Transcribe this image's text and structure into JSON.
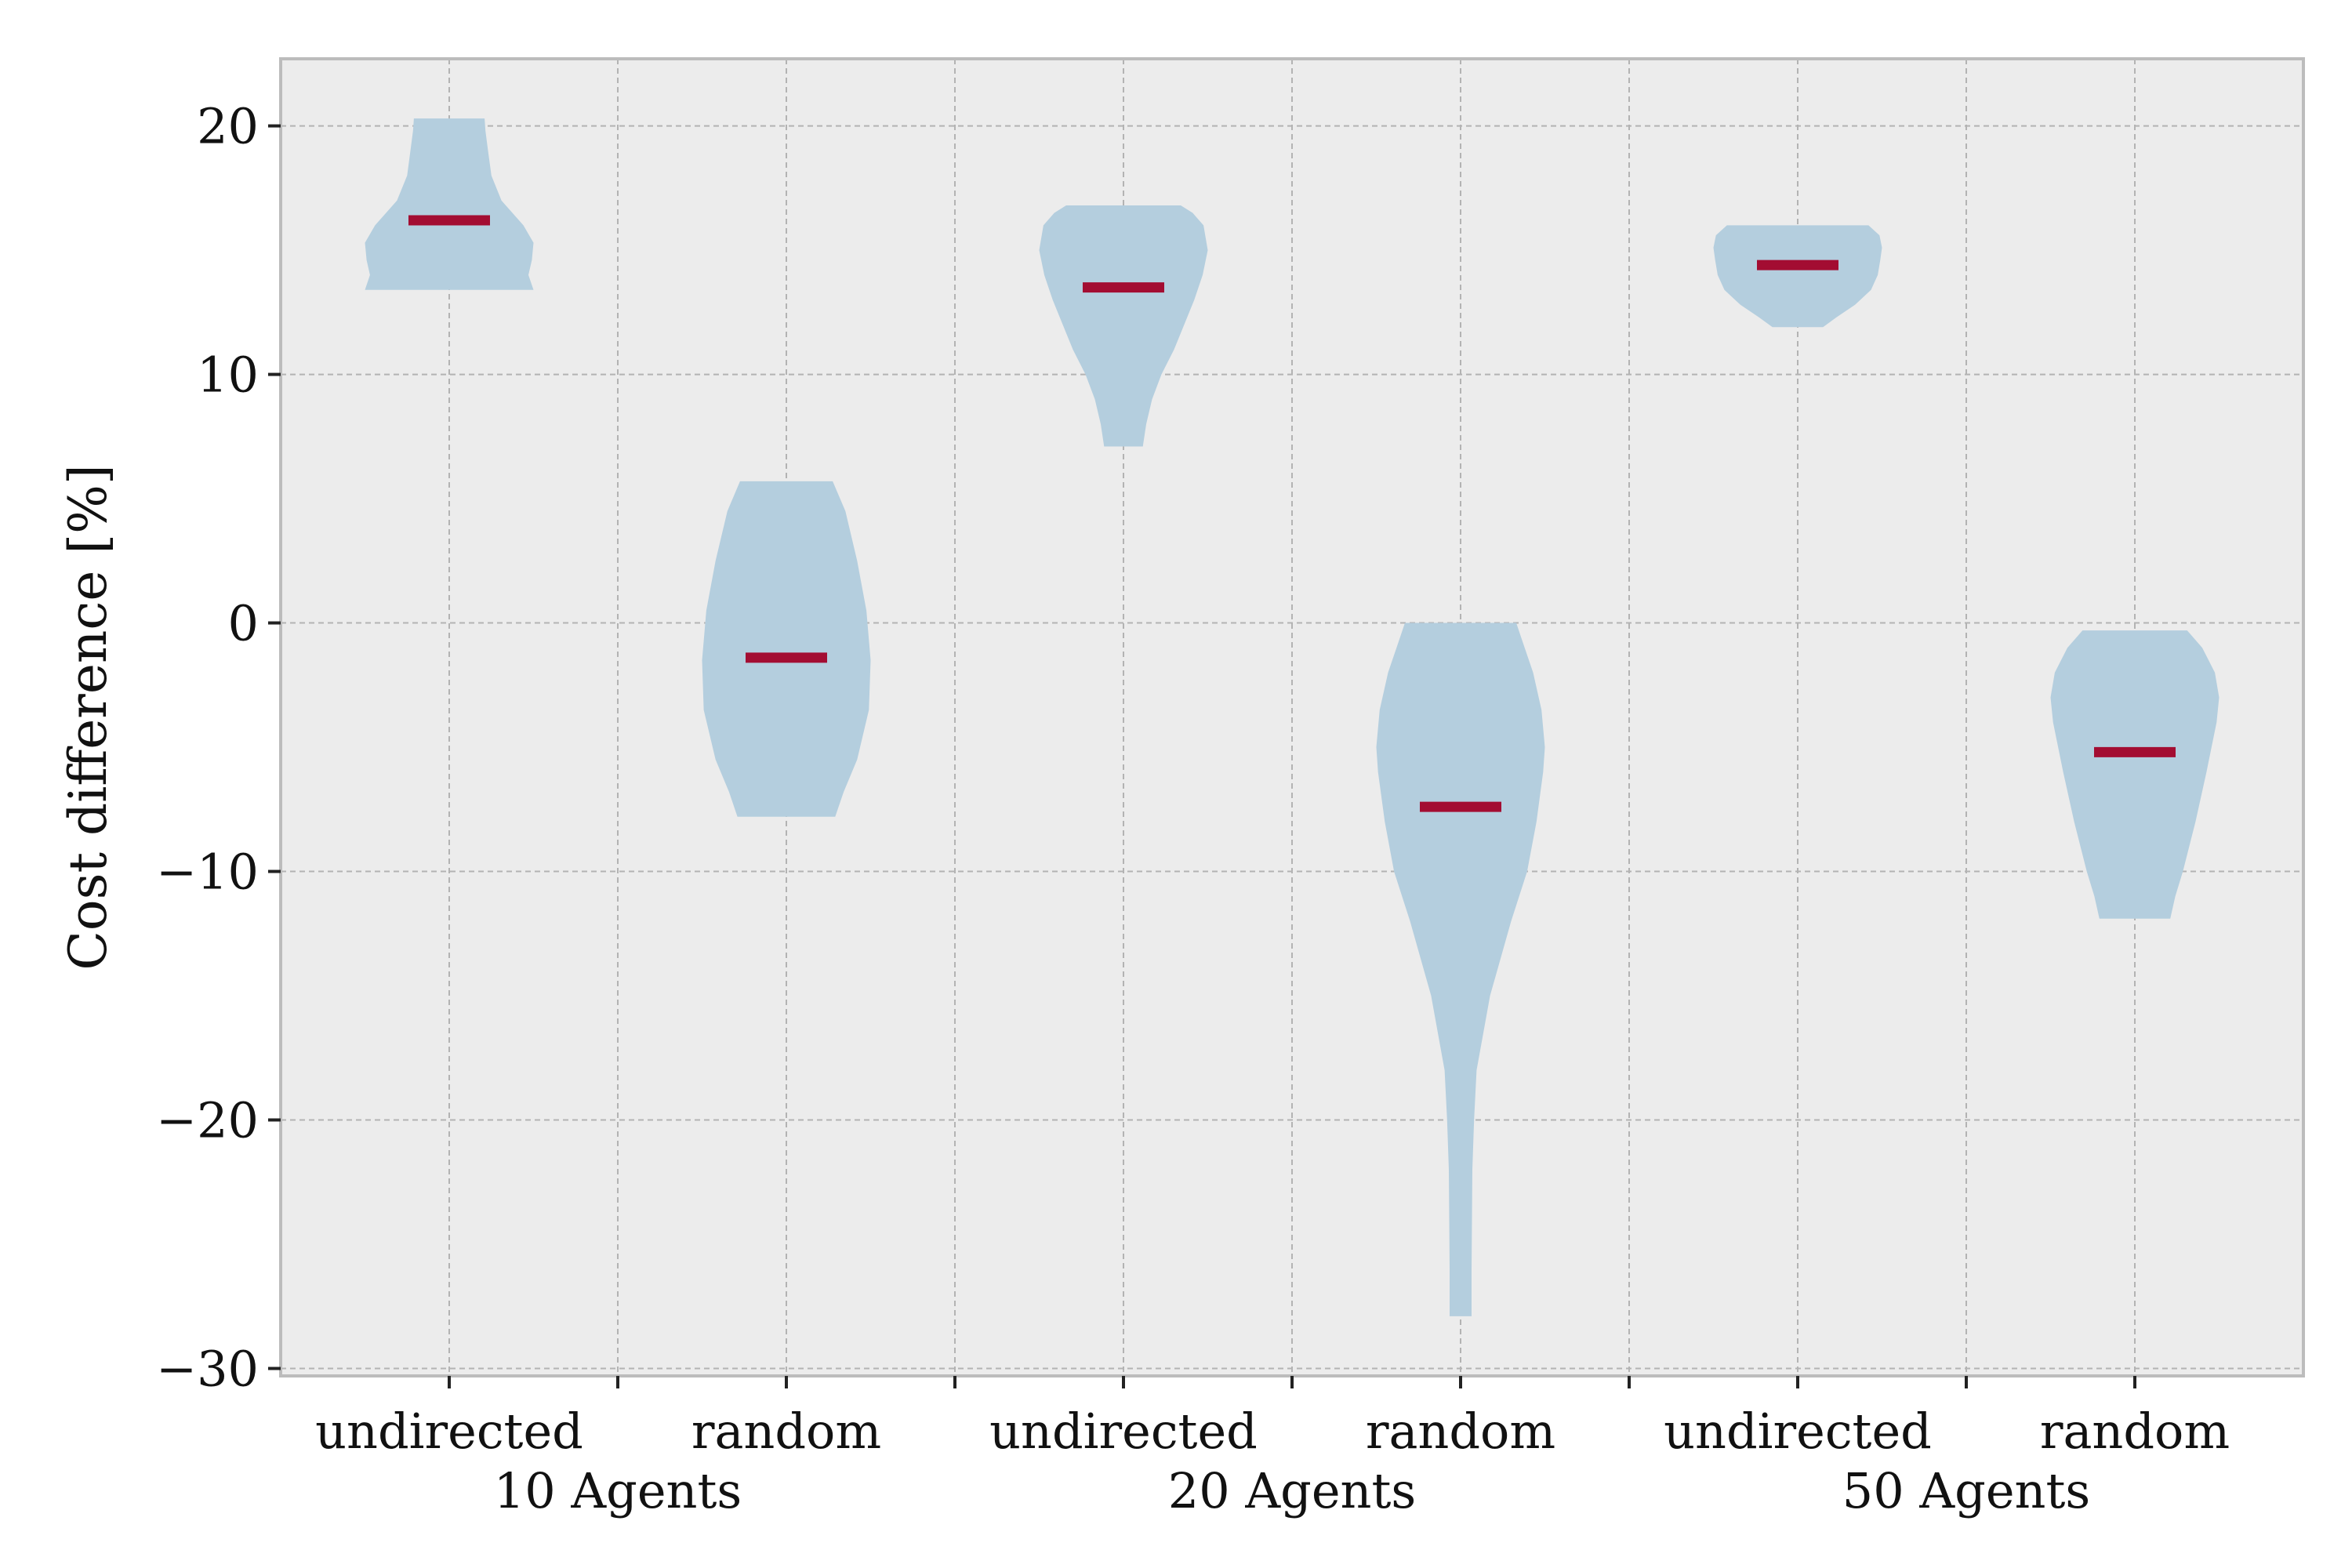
{
  "chart_data": {
    "type": "violin",
    "ylabel": "Cost difference [%]",
    "xlabel": "",
    "ylim": [
      -30.3,
      22.7
    ],
    "yticks": [
      -30,
      -20,
      -10,
      0,
      10,
      20
    ],
    "grid": true,
    "colors": {
      "background": "#ececec",
      "violin": "#b4cede",
      "median": "#a30d32",
      "grid": "#b3b3b3",
      "frame": "#bcbcbc"
    },
    "groups": [
      {
        "label": "10 Agents",
        "categories": [
          "undirected",
          "random"
        ]
      },
      {
        "label": "20 Agents",
        "categories": [
          "undirected",
          "random"
        ]
      },
      {
        "label": "50 Agents",
        "categories": [
          "undirected",
          "random"
        ]
      }
    ],
    "series": [
      {
        "category": "undirected",
        "group": "10 Agents",
        "min": 13.4,
        "max": 20.3,
        "median": 16.2,
        "profile": [
          [
            13.4,
            1.0
          ],
          [
            14.0,
            0.94
          ],
          [
            14.6,
            0.98
          ],
          [
            15.3,
            1.0
          ],
          [
            16.0,
            0.88
          ],
          [
            17.0,
            0.62
          ],
          [
            18.0,
            0.5
          ],
          [
            19.0,
            0.46
          ],
          [
            19.8,
            0.43
          ],
          [
            20.3,
            0.42
          ]
        ]
      },
      {
        "category": "random",
        "group": "10 Agents",
        "min": -7.8,
        "max": 5.7,
        "median": -1.4,
        "profile": [
          [
            -7.8,
            0.58
          ],
          [
            -6.8,
            0.68
          ],
          [
            -5.5,
            0.84
          ],
          [
            -3.5,
            0.98
          ],
          [
            -1.5,
            1.0
          ],
          [
            0.5,
            0.95
          ],
          [
            2.5,
            0.84
          ],
          [
            4.5,
            0.7
          ],
          [
            5.7,
            0.55
          ]
        ]
      },
      {
        "category": "undirected",
        "group": "20 Agents",
        "min": 7.1,
        "max": 16.8,
        "median": 13.5,
        "profile": [
          [
            7.1,
            0.23
          ],
          [
            8.0,
            0.27
          ],
          [
            9.0,
            0.34
          ],
          [
            10.0,
            0.45
          ],
          [
            11.0,
            0.6
          ],
          [
            12.0,
            0.72
          ],
          [
            13.0,
            0.84
          ],
          [
            14.0,
            0.94
          ],
          [
            15.0,
            1.0
          ],
          [
            16.0,
            0.95
          ],
          [
            16.5,
            0.82
          ],
          [
            16.8,
            0.68
          ]
        ]
      },
      {
        "category": "random",
        "group": "20 Agents",
        "min": -27.9,
        "max": 0.0,
        "median": -7.4,
        "profile": [
          [
            -27.9,
            0.13
          ],
          [
            -26.0,
            0.13
          ],
          [
            -22.0,
            0.14
          ],
          [
            -20.0,
            0.16
          ],
          [
            -18.0,
            0.19
          ],
          [
            -15.0,
            0.35
          ],
          [
            -12.0,
            0.6
          ],
          [
            -10.0,
            0.79
          ],
          [
            -8.0,
            0.9
          ],
          [
            -6.0,
            0.98
          ],
          [
            -5.0,
            1.0
          ],
          [
            -3.5,
            0.96
          ],
          [
            -2.0,
            0.86
          ],
          [
            -0.7,
            0.73
          ],
          [
            0.0,
            0.66
          ]
        ]
      },
      {
        "category": "undirected",
        "group": "50 Agents",
        "min": 11.9,
        "max": 16.0,
        "median": 14.4,
        "profile": [
          [
            11.9,
            0.3
          ],
          [
            12.3,
            0.46
          ],
          [
            12.8,
            0.68
          ],
          [
            13.4,
            0.87
          ],
          [
            14.0,
            0.95
          ],
          [
            14.6,
            0.98
          ],
          [
            15.1,
            1.0
          ],
          [
            15.6,
            0.97
          ],
          [
            16.0,
            0.84
          ]
        ]
      },
      {
        "category": "random",
        "group": "50 Agents",
        "min": -11.9,
        "max": -0.3,
        "median": -5.2,
        "profile": [
          [
            -11.9,
            0.42
          ],
          [
            -11.0,
            0.48
          ],
          [
            -10.0,
            0.57
          ],
          [
            -8.0,
            0.72
          ],
          [
            -6.0,
            0.85
          ],
          [
            -4.0,
            0.97
          ],
          [
            -3.0,
            1.0
          ],
          [
            -2.0,
            0.95
          ],
          [
            -1.0,
            0.8
          ],
          [
            -0.3,
            0.62
          ]
        ]
      }
    ]
  }
}
